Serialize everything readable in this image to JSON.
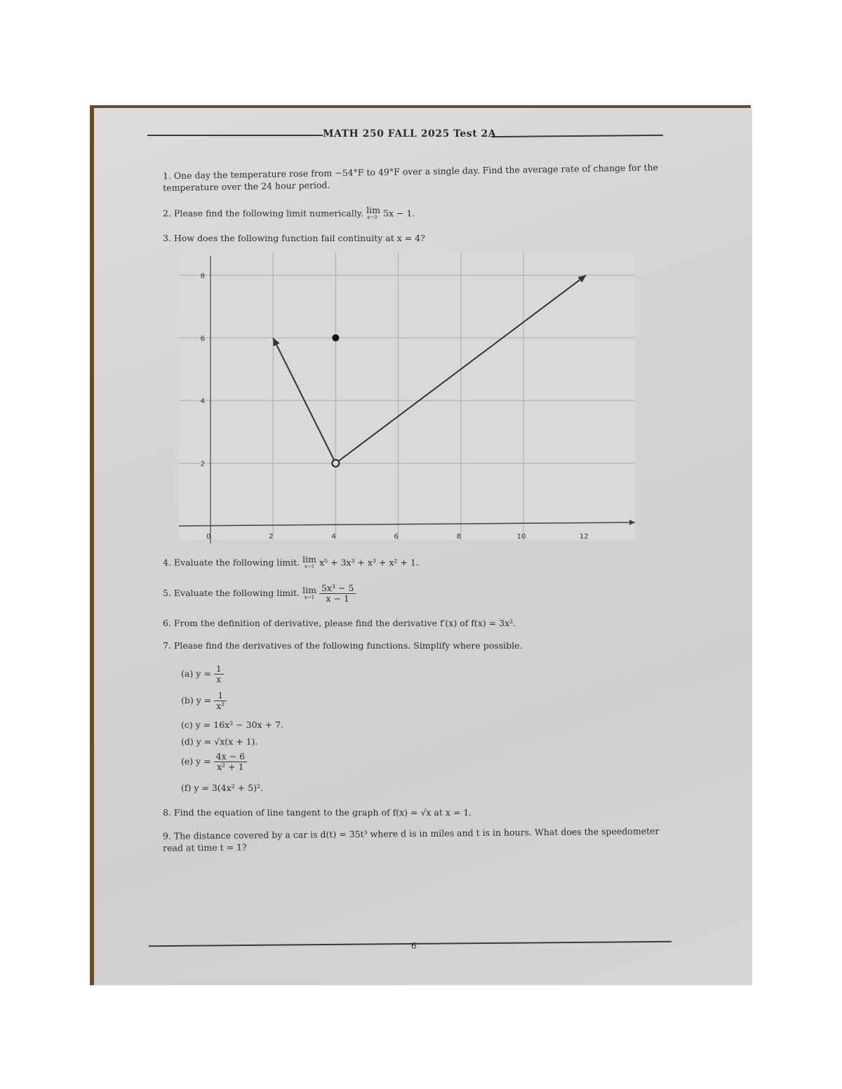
{
  "header": {
    "title": "MATH 250 FALL 2025 Test 2A"
  },
  "questions": [
    {
      "num": "1.",
      "text": "One day the temperature rose from −54°F to 49°F over a single day. Find the average rate of change for the temperature over the 24 hour period."
    },
    {
      "num": "2.",
      "text": "Please find the following limit numerically.",
      "lim_top": "lim",
      "lim_sub": "x→3⁻",
      "expr": "5x − 1."
    },
    {
      "num": "3.",
      "text": "How does the following function fail continuity at x = 4?"
    },
    {
      "num": "4.",
      "text": "Evaluate the following limit.",
      "lim_top": "lim",
      "lim_sub": "x→1",
      "expr": "x⁵ + 3x³ + x³ + x² + 1."
    },
    {
      "num": "5.",
      "text": "Evaluate the following limit.",
      "lim_top": "lim",
      "lim_sub": "x→1",
      "numerator": "5x³ − 5",
      "denominator": "x − 1"
    },
    {
      "num": "6.",
      "text": "From the definition of derivative, please find the derivative f′(x) of f(x) = 3x²."
    },
    {
      "num": "7.",
      "text": "Please find the derivatives of the following functions. Simplify where possible."
    },
    {
      "num": "8.",
      "text": "Find the equation of line tangent to the graph of f(x) = √x at x = 1."
    },
    {
      "num": "9.",
      "text": "The distance covered by a car is d(t) = 35t³ where d is in miles and t is in hours. What does the speedometer read at time t = 1?"
    }
  ],
  "subparts": [
    {
      "label": "(a)",
      "lhs": "y =",
      "numerator": "1",
      "denominator": "x"
    },
    {
      "label": "(b)",
      "lhs": "y =",
      "numerator": "1",
      "denominator": "x²"
    },
    {
      "label": "(c)",
      "expr": "y = 16x² − 30x + 7."
    },
    {
      "label": "(d)",
      "expr": "y = √x(x + 1)."
    },
    {
      "label": "(e)",
      "lhs": "y =",
      "numerator": "4x − 6",
      "denominator": "x² + 1"
    },
    {
      "label": "(f)",
      "expr": "y = 3(4x² + 5)²."
    }
  ],
  "graph": {
    "x_ticks": [
      "0",
      "2",
      "4",
      "6",
      "8",
      "10",
      "12"
    ],
    "y_ticks": [
      "2",
      "4",
      "6",
      "8"
    ],
    "segments": [
      {
        "from": [
          4,
          2
        ],
        "to": [
          2,
          6
        ]
      },
      {
        "from": [
          4,
          2
        ],
        "to": [
          12,
          8
        ]
      }
    ],
    "open_point": [
      4,
      2
    ],
    "closed_point": [
      4,
      6
    ]
  },
  "footer": {
    "page_number": "6"
  }
}
